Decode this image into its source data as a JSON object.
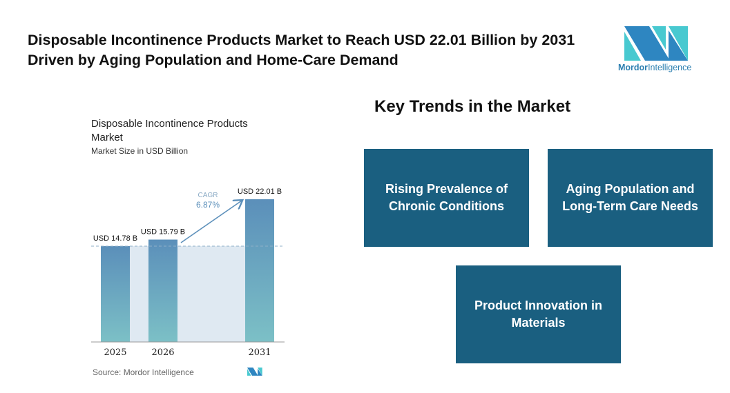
{
  "header": {
    "title": "Disposable Incontinence Products Market to Reach USD 22.01 Billion by 2031 Driven by Aging Population and Home-Care Demand"
  },
  "logo": {
    "name_bold": "Mordor",
    "name_light": "Intelligence"
  },
  "chart_data": {
    "type": "bar",
    "title": "Disposable Incontinence Products Market",
    "subtitle": "Market Size in USD Billion",
    "categories": [
      "2025",
      "2026",
      "2031"
    ],
    "values": [
      14.78,
      15.79,
      22.01
    ],
    "data_labels": [
      "USD 14.78 B",
      "USD 15.79 B",
      "USD 22.01 B"
    ],
    "annotation": {
      "label": "CAGR",
      "value": "6.87%"
    },
    "source": "Source:  Mordor Intelligence",
    "colors": {
      "bar_top": "#5b8fba",
      "bar_bottom": "#7cc0c6",
      "shade": "#dfe9f2",
      "accent": "#5b8fba"
    }
  },
  "trends": {
    "title": "Key Trends in the Market",
    "items": [
      "Rising Prevalence of Chronic Conditions",
      "Aging Population and Long-Term Care Needs",
      "Product Innovation in Materials"
    ],
    "box_color": "#1a5f80"
  }
}
